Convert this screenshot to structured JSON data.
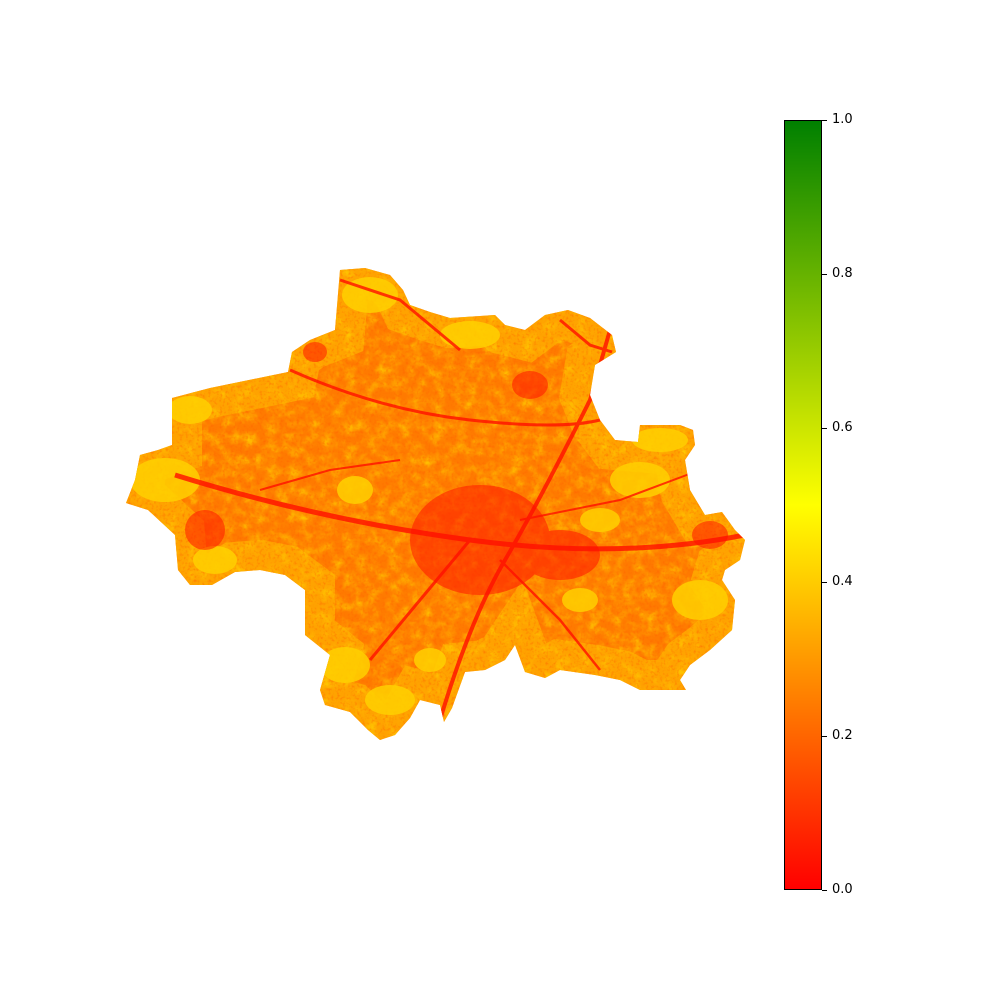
{
  "map": {
    "kind": "raster index map of a city area",
    "colorscale": {
      "min": 0.0,
      "max": 1.0,
      "stops": [
        {
          "value": 0.0,
          "color": "#ff0000"
        },
        {
          "value": 0.5,
          "color": "#ffff00"
        },
        {
          "value": 1.0,
          "color": "#008000"
        }
      ],
      "ticks": [
        {
          "value": 0.0,
          "label": "0.0"
        },
        {
          "value": 0.2,
          "label": "0.2"
        },
        {
          "value": 0.4,
          "label": "0.4"
        },
        {
          "value": 0.6,
          "label": "0.6"
        },
        {
          "value": 0.8,
          "label": "0.8"
        },
        {
          "value": 1.0,
          "label": "1.0"
        }
      ],
      "placement": "right"
    },
    "typical_value_range": [
      0.05,
      0.45
    ]
  }
}
